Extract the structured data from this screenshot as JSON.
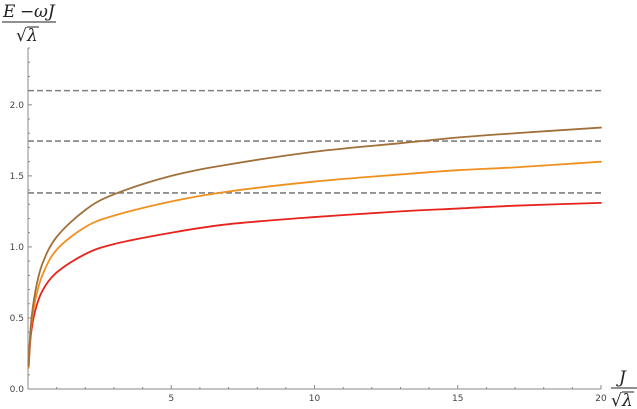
{
  "chart_data": {
    "type": "line",
    "title": "",
    "xlabel": {
      "numerator": "J",
      "denominator_radical": "√",
      "denominator_var": "λ"
    },
    "ylabel": {
      "numerator_lhs": "E",
      "numerator_op": "−",
      "numerator_rhs": "ωJ",
      "denominator_radical": "√",
      "denominator_var": "λ"
    },
    "xlim": [
      0,
      20
    ],
    "ylim": [
      0,
      2.4
    ],
    "xticks": [
      5,
      10,
      15,
      20
    ],
    "yticks": [
      0.0,
      0.5,
      1.0,
      1.5,
      2.0
    ],
    "ytick_labels": [
      "0.0",
      "0.5",
      "1.0",
      "1.5",
      "2.0"
    ],
    "xtick_labels": [
      "5",
      "10",
      "15",
      "20"
    ],
    "grid": false,
    "legend": "none",
    "series": [
      {
        "color": "#e8221c",
        "x": [
          0.02,
          0.1,
          0.25,
          0.5,
          1,
          2,
          3,
          5,
          7,
          10,
          13,
          15,
          17,
          20
        ],
        "y": [
          0.15,
          0.38,
          0.55,
          0.69,
          0.82,
          0.95,
          1.02,
          1.1,
          1.16,
          1.21,
          1.25,
          1.27,
          1.29,
          1.31
        ]
      },
      {
        "color": "#f0901e",
        "x": [
          0.02,
          0.1,
          0.25,
          0.5,
          1,
          2,
          3,
          5,
          7,
          10,
          13,
          15,
          17,
          20
        ],
        "y": [
          0.15,
          0.42,
          0.62,
          0.8,
          0.98,
          1.14,
          1.22,
          1.32,
          1.39,
          1.46,
          1.51,
          1.54,
          1.56,
          1.6
        ]
      },
      {
        "color": "#a0703a",
        "x": [
          0.02,
          0.1,
          0.25,
          0.5,
          1,
          2,
          3,
          5,
          7,
          10,
          13,
          15,
          17,
          20
        ],
        "y": [
          0.16,
          0.45,
          0.68,
          0.88,
          1.07,
          1.26,
          1.37,
          1.5,
          1.58,
          1.67,
          1.73,
          1.77,
          1.8,
          1.84
        ]
      }
    ],
    "reference_lines": [
      {
        "y": 2.1,
        "color": "#808080",
        "style": "dashed"
      },
      {
        "y": 1.745,
        "color": "#808080",
        "style": "dashed"
      },
      {
        "y": 1.38,
        "color": "#808080",
        "style": "dashed"
      }
    ]
  }
}
